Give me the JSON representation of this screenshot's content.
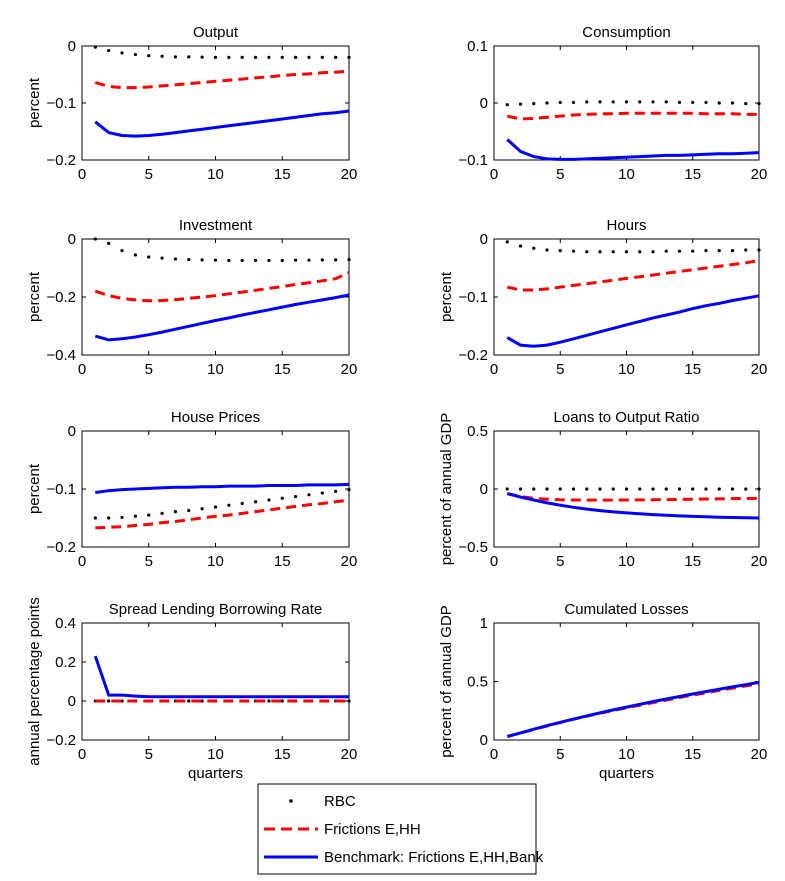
{
  "legend": {
    "position": "bottom-center",
    "entries": [
      {
        "label": "RBC",
        "style": "dotted",
        "color": "#000000"
      },
      {
        "label": "Frictions E,HH",
        "style": "dashed",
        "color": "#ff0000"
      },
      {
        "label": "Benchmark: Frictions E,HH,Bank",
        "style": "solid",
        "color": "#0000ff"
      }
    ]
  },
  "chart_data": [
    {
      "type": "line",
      "title": "Output",
      "xlabel": "",
      "ylabel": "percent",
      "xlim": [
        0,
        20
      ],
      "ylim": [
        -0.2,
        0
      ],
      "xticks": [
        "0",
        "5",
        "10",
        "15",
        "20"
      ],
      "yticks": [
        "-0.2",
        "-0.1",
        "0"
      ],
      "x": [
        1,
        2,
        3,
        4,
        5,
        6,
        7,
        8,
        9,
        10,
        11,
        12,
        13,
        14,
        15,
        16,
        17,
        18,
        19,
        20
      ],
      "series": [
        {
          "name": "RBC",
          "values": [
            -0.002,
            -0.008,
            -0.012,
            -0.015,
            -0.017,
            -0.018,
            -0.019,
            -0.019,
            -0.0195,
            -0.02,
            -0.02,
            -0.02,
            -0.02,
            -0.02,
            -0.02,
            -0.02,
            -0.02,
            -0.02,
            -0.02,
            -0.02
          ]
        },
        {
          "name": "Frictions E,HH",
          "values": [
            -0.064,
            -0.071,
            -0.073,
            -0.073,
            -0.072,
            -0.07,
            -0.068,
            -0.066,
            -0.064,
            -0.062,
            -0.06,
            -0.058,
            -0.056,
            -0.054,
            -0.052,
            -0.05,
            -0.049,
            -0.047,
            -0.046,
            -0.044
          ]
        },
        {
          "name": "Benchmark: Frictions E,HH,Bank",
          "values": [
            -0.133,
            -0.152,
            -0.157,
            -0.158,
            -0.157,
            -0.155,
            -0.152,
            -0.149,
            -0.146,
            -0.143,
            -0.14,
            -0.137,
            -0.134,
            -0.131,
            -0.128,
            -0.125,
            -0.122,
            -0.119,
            -0.117,
            -0.114
          ]
        }
      ]
    },
    {
      "type": "line",
      "title": "Consumption",
      "xlabel": "",
      "ylabel": "",
      "xlim": [
        0,
        20
      ],
      "ylim": [
        -0.1,
        0.1
      ],
      "xticks": [
        "0",
        "5",
        "10",
        "15",
        "20"
      ],
      "yticks": [
        "-0.1",
        "0",
        "0.1"
      ],
      "x": [
        1,
        2,
        3,
        4,
        5,
        6,
        7,
        8,
        9,
        10,
        11,
        12,
        13,
        14,
        15,
        16,
        17,
        18,
        19,
        20
      ],
      "series": [
        {
          "name": "RBC",
          "values": [
            -0.003,
            -0.002,
            -0.001,
            0,
            0.001,
            0.001,
            0.002,
            0.002,
            0.002,
            0.002,
            0.002,
            0.002,
            0.002,
            0.001,
            0.001,
            0.001,
            0,
            0,
            -0.001,
            -0.001
          ]
        },
        {
          "name": "Frictions E,HH",
          "values": [
            -0.023,
            -0.028,
            -0.027,
            -0.025,
            -0.023,
            -0.021,
            -0.02,
            -0.019,
            -0.019,
            -0.018,
            -0.018,
            -0.018,
            -0.018,
            -0.018,
            -0.018,
            -0.019,
            -0.019,
            -0.019,
            -0.02,
            -0.02
          ]
        },
        {
          "name": "Benchmark: Frictions E,HH,Bank",
          "values": [
            -0.064,
            -0.085,
            -0.094,
            -0.098,
            -0.099,
            -0.099,
            -0.098,
            -0.097,
            -0.096,
            -0.095,
            -0.094,
            -0.093,
            -0.092,
            -0.092,
            -0.091,
            -0.09,
            -0.089,
            -0.089,
            -0.088,
            -0.087
          ]
        }
      ]
    },
    {
      "type": "line",
      "title": "Investment",
      "xlabel": "",
      "ylabel": "percent",
      "xlim": [
        0,
        20
      ],
      "ylim": [
        -0.4,
        0
      ],
      "xticks": [
        "0",
        "5",
        "10",
        "15",
        "20"
      ],
      "yticks": [
        "-0.4",
        "-0.2",
        "0"
      ],
      "x": [
        1,
        2,
        3,
        4,
        5,
        6,
        7,
        8,
        9,
        10,
        11,
        12,
        13,
        14,
        15,
        16,
        17,
        18,
        19,
        20
      ],
      "series": [
        {
          "name": "RBC",
          "values": [
            0,
            -0.015,
            -0.04,
            -0.055,
            -0.062,
            -0.066,
            -0.069,
            -0.071,
            -0.072,
            -0.073,
            -0.074,
            -0.074,
            -0.074,
            -0.074,
            -0.074,
            -0.073,
            -0.073,
            -0.072,
            -0.072,
            -0.071
          ]
        },
        {
          "name": "Frictions E,HH",
          "values": [
            -0.18,
            -0.195,
            -0.205,
            -0.21,
            -0.213,
            -0.212,
            -0.209,
            -0.205,
            -0.2,
            -0.195,
            -0.189,
            -0.183,
            -0.177,
            -0.17,
            -0.164,
            -0.157,
            -0.151,
            -0.144,
            -0.137,
            -0.116
          ]
        },
        {
          "name": "Benchmark: Frictions E,HH,Bank",
          "values": [
            -0.335,
            -0.348,
            -0.344,
            -0.338,
            -0.33,
            -0.321,
            -0.311,
            -0.301,
            -0.291,
            -0.281,
            -0.272,
            -0.262,
            -0.253,
            -0.244,
            -0.235,
            -0.226,
            -0.218,
            -0.21,
            -0.202,
            -0.193
          ]
        }
      ]
    },
    {
      "type": "line",
      "title": "Hours",
      "xlabel": "",
      "ylabel": "percent",
      "xlim": [
        0,
        20
      ],
      "ylim": [
        -0.2,
        0
      ],
      "xticks": [
        "0",
        "5",
        "10",
        "15",
        "20"
      ],
      "yticks": [
        "-0.2",
        "-0.1",
        "0"
      ],
      "x": [
        1,
        2,
        3,
        4,
        5,
        6,
        7,
        8,
        9,
        10,
        11,
        12,
        13,
        14,
        15,
        16,
        17,
        18,
        19,
        20
      ],
      "series": [
        {
          "name": "RBC",
          "values": [
            -0.005,
            -0.012,
            -0.016,
            -0.019,
            -0.02,
            -0.021,
            -0.022,
            -0.022,
            -0.022,
            -0.022,
            -0.022,
            -0.022,
            -0.021,
            -0.021,
            -0.021,
            -0.02,
            -0.02,
            -0.02,
            -0.019,
            -0.019
          ]
        },
        {
          "name": "Frictions E,HH",
          "values": [
            -0.083,
            -0.088,
            -0.088,
            -0.086,
            -0.083,
            -0.08,
            -0.077,
            -0.074,
            -0.071,
            -0.068,
            -0.065,
            -0.062,
            -0.059,
            -0.056,
            -0.053,
            -0.05,
            -0.047,
            -0.044,
            -0.041,
            -0.037
          ]
        },
        {
          "name": "Benchmark: Frictions E,HH,Bank",
          "values": [
            -0.17,
            -0.183,
            -0.185,
            -0.183,
            -0.178,
            -0.172,
            -0.166,
            -0.16,
            -0.154,
            -0.148,
            -0.142,
            -0.136,
            -0.131,
            -0.126,
            -0.12,
            -0.115,
            -0.111,
            -0.106,
            -0.102,
            -0.098
          ]
        }
      ]
    },
    {
      "type": "line",
      "title": "House Prices",
      "xlabel": "",
      "ylabel": "percent",
      "xlim": [
        0,
        20
      ],
      "ylim": [
        -0.2,
        0
      ],
      "xticks": [
        "0",
        "5",
        "10",
        "15",
        "20"
      ],
      "yticks": [
        "-0.2",
        "-0.1",
        "0"
      ],
      "x": [
        1,
        2,
        3,
        4,
        5,
        6,
        7,
        8,
        9,
        10,
        11,
        12,
        13,
        14,
        15,
        16,
        17,
        18,
        19,
        20
      ],
      "series": [
        {
          "name": "RBC",
          "values": [
            -0.15,
            -0.15,
            -0.149,
            -0.147,
            -0.145,
            -0.142,
            -0.139,
            -0.137,
            -0.134,
            -0.131,
            -0.128,
            -0.125,
            -0.122,
            -0.119,
            -0.116,
            -0.113,
            -0.11,
            -0.107,
            -0.104,
            -0.101
          ]
        },
        {
          "name": "Frictions E,HH",
          "values": [
            -0.167,
            -0.166,
            -0.165,
            -0.163,
            -0.161,
            -0.158,
            -0.156,
            -0.153,
            -0.15,
            -0.147,
            -0.145,
            -0.142,
            -0.139,
            -0.136,
            -0.133,
            -0.13,
            -0.127,
            -0.125,
            -0.122,
            -0.119
          ]
        },
        {
          "name": "Benchmark: Frictions E,HH,Bank",
          "values": [
            -0.106,
            -0.103,
            -0.101,
            -0.1,
            -0.099,
            -0.098,
            -0.097,
            -0.097,
            -0.096,
            -0.096,
            -0.095,
            -0.095,
            -0.095,
            -0.094,
            -0.094,
            -0.094,
            -0.093,
            -0.093,
            -0.093,
            -0.092
          ]
        }
      ]
    },
    {
      "type": "line",
      "title": "Loans to Output Ratio",
      "xlabel": "",
      "ylabel": "percent of annual GDP",
      "xlim": [
        0,
        20
      ],
      "ylim": [
        -0.5,
        0.5
      ],
      "xticks": [
        "0",
        "5",
        "10",
        "15",
        "20"
      ],
      "yticks": [
        "-0.5",
        "0",
        "0.5"
      ],
      "x": [
        1,
        2,
        3,
        4,
        5,
        6,
        7,
        8,
        9,
        10,
        11,
        12,
        13,
        14,
        15,
        16,
        17,
        18,
        19,
        20
      ],
      "series": [
        {
          "name": "RBC",
          "values": [
            0,
            0,
            0,
            0,
            0,
            0,
            0,
            0,
            0,
            0,
            0,
            0,
            0,
            0,
            0,
            0,
            0,
            0,
            0,
            0
          ]
        },
        {
          "name": "Frictions E,HH",
          "values": [
            -0.04,
            -0.065,
            -0.08,
            -0.088,
            -0.093,
            -0.095,
            -0.096,
            -0.096,
            -0.096,
            -0.095,
            -0.094,
            -0.093,
            -0.091,
            -0.09,
            -0.088,
            -0.086,
            -0.085,
            -0.083,
            -0.082,
            -0.08
          ]
        },
        {
          "name": "Benchmark: Frictions E,HH,Bank",
          "values": [
            -0.04,
            -0.07,
            -0.095,
            -0.12,
            -0.14,
            -0.158,
            -0.173,
            -0.186,
            -0.197,
            -0.206,
            -0.214,
            -0.221,
            -0.227,
            -0.232,
            -0.236,
            -0.24,
            -0.243,
            -0.246,
            -0.248,
            -0.25
          ]
        }
      ]
    },
    {
      "type": "line",
      "title": "Spread Lending Borrowing Rate",
      "xlabel": "quarters",
      "ylabel": "annual percentage points",
      "xlim": [
        0,
        20
      ],
      "ylim": [
        -0.2,
        0.4
      ],
      "xticks": [
        "0",
        "5",
        "10",
        "15",
        "20"
      ],
      "yticks": [
        "-0.2",
        "0",
        "0.2",
        "0.4"
      ],
      "x": [
        1,
        2,
        3,
        4,
        5,
        6,
        7,
        8,
        9,
        10,
        11,
        12,
        13,
        14,
        15,
        16,
        17,
        18,
        19,
        20
      ],
      "series": [
        {
          "name": "RBC",
          "values": [
            0,
            0,
            0,
            0,
            0,
            0,
            0,
            0,
            0,
            0,
            0,
            0,
            0,
            0,
            0,
            0,
            0,
            0,
            0,
            0
          ]
        },
        {
          "name": "Frictions E,HH",
          "values": [
            0,
            0,
            0,
            0,
            0,
            0,
            0,
            0,
            0,
            0,
            0,
            0,
            0,
            0,
            0,
            0,
            0,
            0,
            0,
            0
          ]
        },
        {
          "name": "Benchmark: Frictions E,HH,Bank",
          "values": [
            0.23,
            0.03,
            0.03,
            0.025,
            0.022,
            0.022,
            0.022,
            0.022,
            0.022,
            0.022,
            0.022,
            0.022,
            0.022,
            0.022,
            0.022,
            0.022,
            0.022,
            0.022,
            0.022,
            0.022
          ]
        }
      ]
    },
    {
      "type": "line",
      "title": "Cumulated Losses",
      "xlabel": "quarters",
      "ylabel": "percent of annual GDP",
      "xlim": [
        0,
        20
      ],
      "ylim": [
        0,
        1
      ],
      "xticks": [
        "0",
        "5",
        "10",
        "15",
        "20"
      ],
      "yticks": [
        "0",
        "0.5",
        "1"
      ],
      "x": [
        1,
        2,
        3,
        4,
        5,
        6,
        7,
        8,
        9,
        10,
        11,
        12,
        13,
        14,
        15,
        16,
        17,
        18,
        19,
        20
      ],
      "series": [
        {
          "name": "Frictions E,HH",
          "values": [
            0.03,
            0.06,
            0.09,
            0.12,
            0.15,
            0.177,
            0.203,
            0.228,
            0.252,
            0.275,
            0.298,
            0.32,
            0.342,
            0.363,
            0.384,
            0.404,
            0.424,
            0.443,
            0.462,
            0.48
          ]
        },
        {
          "name": "Benchmark: Frictions E,HH,Bank",
          "values": [
            0.03,
            0.061,
            0.092,
            0.122,
            0.151,
            0.179,
            0.206,
            0.232,
            0.257,
            0.281,
            0.305,
            0.328,
            0.35,
            0.372,
            0.393,
            0.414,
            0.434,
            0.454,
            0.473,
            0.492
          ]
        }
      ]
    }
  ]
}
